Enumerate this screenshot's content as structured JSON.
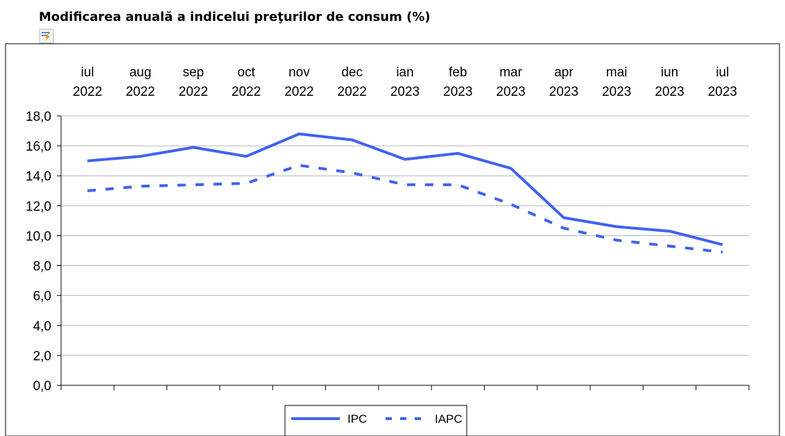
{
  "chart_data": {
    "type": "line",
    "title": "Modificarea anuală a indicelui preţurilor de consum (%)",
    "categories": [
      [
        "iul",
        "2022"
      ],
      [
        "aug",
        "2022"
      ],
      [
        "sep",
        "2022"
      ],
      [
        "oct",
        "2022"
      ],
      [
        "nov",
        "2022"
      ],
      [
        "dec",
        "2022"
      ],
      [
        "ian",
        "2023"
      ],
      [
        "feb",
        "2023"
      ],
      [
        "mar",
        "2023"
      ],
      [
        "apr",
        "2023"
      ],
      [
        "mai",
        "2023"
      ],
      [
        "iun",
        "2023"
      ],
      [
        "iul",
        "2023"
      ]
    ],
    "series": [
      {
        "name": "IPC",
        "style": "solid",
        "color": "#3f62f2",
        "values": [
          15.0,
          15.3,
          15.9,
          15.3,
          16.8,
          16.4,
          15.1,
          15.5,
          14.5,
          11.2,
          10.6,
          10.3,
          9.4
        ]
      },
      {
        "name": "IAPC",
        "style": "dashed",
        "color": "#3f62f2",
        "values": [
          13.0,
          13.3,
          13.4,
          13.5,
          14.7,
          14.2,
          13.4,
          13.4,
          12.1,
          10.5,
          9.7,
          9.3,
          8.9
        ]
      }
    ],
    "ylim": [
      0,
      18
    ],
    "yticks": [
      "0,0",
      "2,0",
      "4,0",
      "6,0",
      "8,0",
      "10,0",
      "12,0",
      "14,0",
      "16,0",
      "18,0"
    ],
    "grid": true,
    "legend": "bottom-center",
    "category_position": "top"
  },
  "icons": {
    "edit": "chart-edit-icon"
  }
}
